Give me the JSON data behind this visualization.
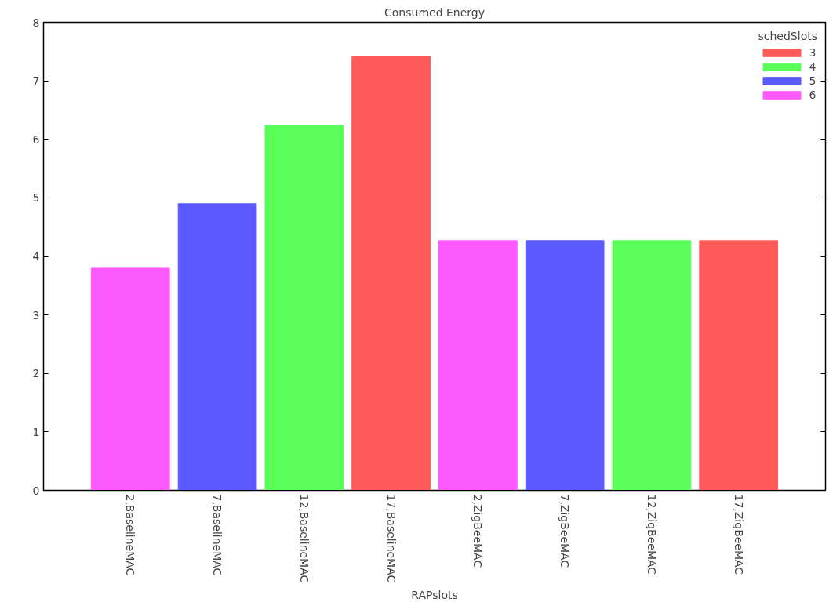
{
  "chart_data": {
    "type": "bar",
    "title": "Consumed Energy",
    "xlabel": "RAPslots",
    "legend_title": "schedSlots",
    "categories": [
      "2,BaselineMAC",
      "7,BaselineMAC",
      "12,BaselineMAC",
      "17,BaselineMAC",
      "2,ZigBeeMAC",
      "7,ZigBeeMAC",
      "12,ZigBeeMAC",
      "17,ZigBeeMAC"
    ],
    "series": [
      {
        "name": "3",
        "color": "#ff5a5a",
        "values": [
          null,
          null,
          null,
          7.41,
          null,
          null,
          null,
          4.27
        ]
      },
      {
        "name": "4",
        "color": "#5aff5a",
        "values": [
          null,
          null,
          6.23,
          null,
          null,
          null,
          4.27,
          null
        ]
      },
      {
        "name": "5",
        "color": "#5a5aff",
        "values": [
          null,
          4.9,
          null,
          null,
          null,
          4.27,
          null,
          null
        ]
      },
      {
        "name": "6",
        "color": "#ff5aff",
        "values": [
          3.8,
          null,
          null,
          null,
          4.27,
          null,
          null,
          null
        ]
      }
    ],
    "ylim": [
      0,
      8
    ],
    "yticks": [
      0,
      1,
      2,
      3,
      4,
      5,
      6,
      7,
      8
    ],
    "grid": false,
    "legend": "top right"
  }
}
